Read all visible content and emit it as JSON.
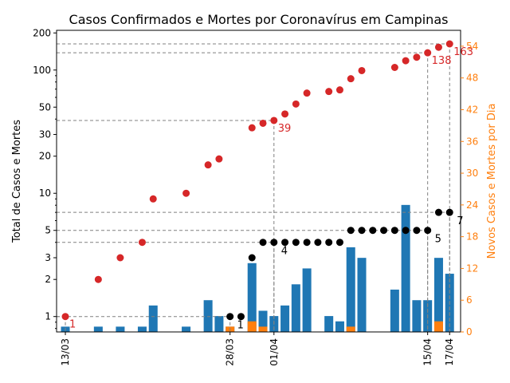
{
  "chart_data": {
    "type": "bar+scatter",
    "title": "Casos Confirmados e Mortes por Coronavírus em Campinas",
    "ylabel_left": "Total de Casos e Mortes",
    "ylabel_right": "Novos Casos e Mortes por Dia",
    "left_axis": {
      "scale": "log",
      "ylim": [
        0.75,
        210
      ],
      "ticks": [
        {
          "v": 1,
          "label": "1"
        },
        {
          "v": 2,
          "label": "2"
        },
        {
          "v": 3,
          "label": "3"
        },
        {
          "v": 5,
          "label": "5"
        },
        {
          "v": 10,
          "label": "10"
        },
        {
          "v": 20,
          "label": "20"
        },
        {
          "v": 30,
          "label": "30"
        },
        {
          "v": 50,
          "label": "50"
        },
        {
          "v": 100,
          "label": "100"
        },
        {
          "v": 200,
          "label": "200"
        }
      ]
    },
    "right_axis": {
      "scale": "linear",
      "ylim": [
        0,
        57
      ],
      "ticks": [
        {
          "v": 0,
          "label": "0"
        },
        {
          "v": 6,
          "label": "6"
        },
        {
          "v": 12,
          "label": "12"
        },
        {
          "v": 18,
          "label": "18"
        },
        {
          "v": 24,
          "label": "24"
        },
        {
          "v": 30,
          "label": "30"
        },
        {
          "v": 36,
          "label": "36"
        },
        {
          "v": 42,
          "label": "42"
        },
        {
          "v": 48,
          "label": "48"
        },
        {
          "v": 54,
          "label": "54"
        }
      ]
    },
    "x_ticks": [
      {
        "day": 0,
        "label": "13/03"
      },
      {
        "day": 15,
        "label": "28/03"
      },
      {
        "day": 19,
        "label": "01/04"
      },
      {
        "day": 33,
        "label": "15/04"
      },
      {
        "day": 35,
        "label": "17/04"
      }
    ],
    "cases_total": [
      {
        "day": 0,
        "v": 1
      },
      {
        "day": 3,
        "v": 2
      },
      {
        "day": 5,
        "v": 3
      },
      {
        "day": 7,
        "v": 4
      },
      {
        "day": 8,
        "v": 9
      },
      {
        "day": 11,
        "v": 10
      },
      {
        "day": 13,
        "v": 17
      },
      {
        "day": 14,
        "v": 19
      },
      {
        "day": 17,
        "v": 34
      },
      {
        "day": 18,
        "v": 37
      },
      {
        "day": 19,
        "v": 39
      },
      {
        "day": 20,
        "v": 44
      },
      {
        "day": 21,
        "v": 53
      },
      {
        "day": 22,
        "v": 65
      },
      {
        "day": 24,
        "v": 67
      },
      {
        "day": 25,
        "v": 69
      },
      {
        "day": 26,
        "v": 85
      },
      {
        "day": 27,
        "v": 99
      },
      {
        "day": 30,
        "v": 105
      },
      {
        "day": 31,
        "v": 119
      },
      {
        "day": 32,
        "v": 127
      },
      {
        "day": 33,
        "v": 138
      },
      {
        "day": 34,
        "v": 153
      },
      {
        "day": 35,
        "v": 163
      }
    ],
    "deaths_total": [
      {
        "day": 15,
        "v": 1
      },
      {
        "day": 16,
        "v": 1
      },
      {
        "day": 17,
        "v": 3
      },
      {
        "day": 18,
        "v": 4
      },
      {
        "day": 19,
        "v": 4
      },
      {
        "day": 20,
        "v": 4
      },
      {
        "day": 21,
        "v": 4
      },
      {
        "day": 22,
        "v": 4
      },
      {
        "day": 23,
        "v": 4
      },
      {
        "day": 24,
        "v": 4
      },
      {
        "day": 25,
        "v": 4
      },
      {
        "day": 26,
        "v": 5
      },
      {
        "day": 27,
        "v": 5
      },
      {
        "day": 28,
        "v": 5
      },
      {
        "day": 29,
        "v": 5
      },
      {
        "day": 30,
        "v": 5
      },
      {
        "day": 31,
        "v": 5
      },
      {
        "day": 32,
        "v": 5
      },
      {
        "day": 33,
        "v": 5
      },
      {
        "day": 34,
        "v": 7
      },
      {
        "day": 35,
        "v": 7
      }
    ],
    "new_cases_bars": [
      {
        "day": 0,
        "v": 1
      },
      {
        "day": 3,
        "v": 1
      },
      {
        "day": 5,
        "v": 1
      },
      {
        "day": 7,
        "v": 1
      },
      {
        "day": 8,
        "v": 5
      },
      {
        "day": 11,
        "v": 1
      },
      {
        "day": 13,
        "v": 6
      },
      {
        "day": 14,
        "v": 3
      },
      {
        "day": 15,
        "v": 1
      },
      {
        "day": 17,
        "v": 13
      },
      {
        "day": 18,
        "v": 4
      },
      {
        "day": 19,
        "v": 3
      },
      {
        "day": 20,
        "v": 5
      },
      {
        "day": 21,
        "v": 9
      },
      {
        "day": 22,
        "v": 12
      },
      {
        "day": 24,
        "v": 3
      },
      {
        "day": 25,
        "v": 2
      },
      {
        "day": 26,
        "v": 16
      },
      {
        "day": 27,
        "v": 14
      },
      {
        "day": 30,
        "v": 8
      },
      {
        "day": 31,
        "v": 24
      },
      {
        "day": 32,
        "v": 6
      },
      {
        "day": 33,
        "v": 6
      },
      {
        "day": 34,
        "v": 14
      },
      {
        "day": 35,
        "v": 11
      }
    ],
    "new_deaths_bars": [
      {
        "day": 15,
        "v": 1
      },
      {
        "day": 17,
        "v": 2
      },
      {
        "day": 18,
        "v": 1
      },
      {
        "day": 26,
        "v": 1
      },
      {
        "day": 34,
        "v": 2
      }
    ],
    "annotations_cases": [
      {
        "day": 0,
        "v": 1,
        "label": "1"
      },
      {
        "day": 19,
        "v": 39,
        "label": "39"
      },
      {
        "day": 33,
        "v": 138,
        "label": "138"
      },
      {
        "day": 35,
        "v": 163,
        "label": "163"
      }
    ],
    "annotations_deaths": [
      {
        "day": 15,
        "v": 1,
        "label": "1"
      },
      {
        "day": 19,
        "v": 4,
        "label": "4"
      },
      {
        "day": 33,
        "v": 5,
        "label": "5"
      },
      {
        "day": 35,
        "v": 7,
        "label": "7"
      }
    ],
    "colors": {
      "cases": "#d62728",
      "deaths": "#000000",
      "bars_cases": "#1f77b4",
      "bars_deaths": "#ff7f0e",
      "right_axis": "#ff7f0e",
      "guide": "#808080"
    },
    "grid": false
  }
}
